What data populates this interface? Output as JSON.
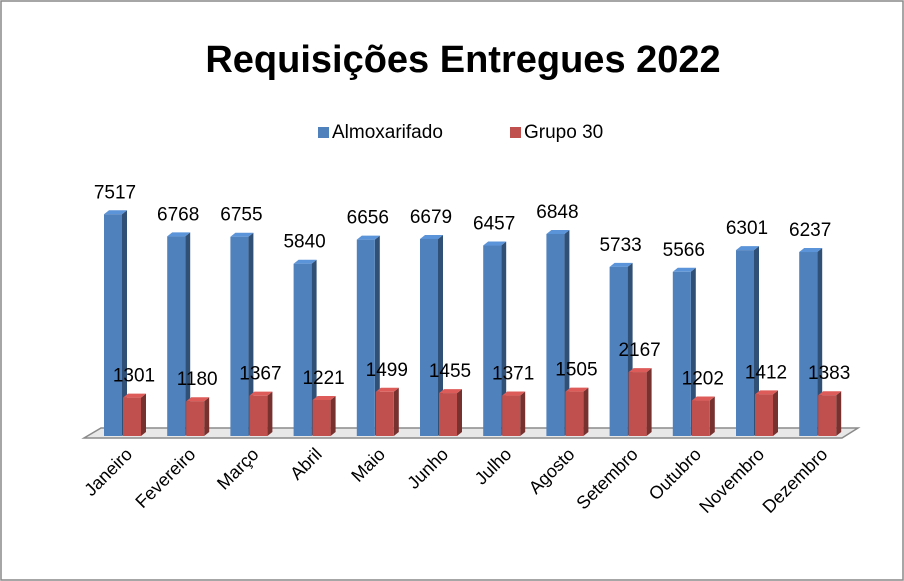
{
  "chart_data": {
    "type": "bar3d",
    "title": "Requisições Entregues 2022",
    "categories": [
      "Janeiro",
      "Fevereiro",
      "Março",
      "Abril",
      "Maio",
      "Junho",
      "Julho",
      "Agosto",
      "Setembro",
      "Outubro",
      "Novembro",
      "Dezembro"
    ],
    "series": [
      {
        "name": "Almoxarifado",
        "color": "#4f81bd",
        "values": [
          7517,
          6768,
          6755,
          5840,
          6656,
          6679,
          6457,
          6848,
          5733,
          5566,
          6301,
          6237
        ]
      },
      {
        "name": "Grupo 30",
        "color": "#c0504d",
        "values": [
          1301,
          1180,
          1367,
          1221,
          1499,
          1455,
          1371,
          1505,
          2167,
          1202,
          1412,
          1383
        ]
      }
    ],
    "legend": "top"
  }
}
